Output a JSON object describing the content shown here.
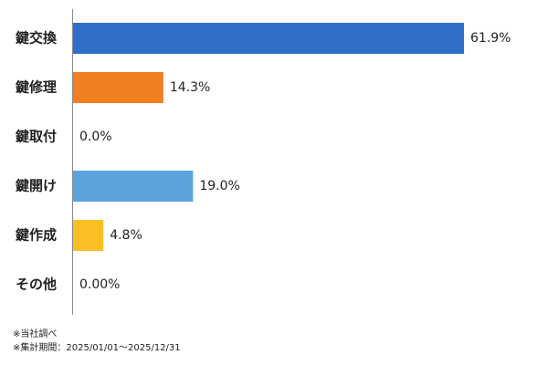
{
  "chart_data": {
    "type": "bar",
    "orientation": "horizontal",
    "categories": [
      "鍵交換",
      "鍵修理",
      "鍵取付",
      "鍵開け",
      "鍵作成",
      "その他"
    ],
    "values": [
      61.9,
      14.3,
      0,
      19.0,
      4.8,
      0
    ],
    "value_labels": [
      "61.9%",
      "14.3%",
      "0.0%",
      "19.0%",
      "4.8%",
      "0.00%"
    ],
    "colors": [
      "#2f6fca",
      "#f07f22",
      null,
      "#5ba3dc",
      "#fbbf24",
      null
    ],
    "notes": [
      "※当社調べ",
      "※集計期間：2025/01/01～2025/12/31"
    ]
  }
}
